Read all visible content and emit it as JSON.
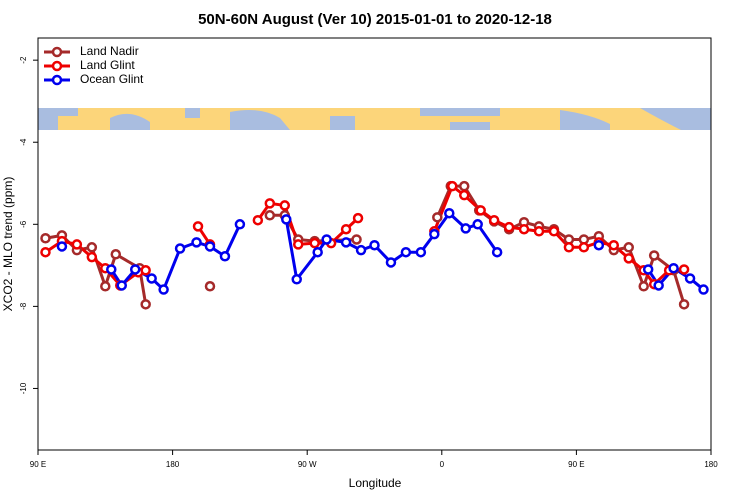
{
  "chart_data": {
    "type": "line",
    "title": "50N-60N August (Ver 10)   2015-01-01 to 2020-12-18",
    "x_label": "Longitude",
    "y_label": "XCO2 - MLO trend (ppm)",
    "xlim": [
      90,
      540
    ],
    "xticks": [
      {
        "value": 90,
        "label": "90 E"
      },
      180,
      {
        "value": 270,
        "label": "90 W"
      },
      {
        "value": 360,
        "label": "0"
      },
      {
        "value": 450,
        "label": "90 E"
      },
      {
        "value": 540,
        "label": "180"
      }
    ],
    "ylim": [
      -11.5,
      -1.46
    ],
    "yticks": [
      -2,
      -4,
      -6,
      -8,
      -10
    ],
    "legend": "top-left",
    "series": [
      {
        "name": "Land Nadir",
        "color": "#a52a2a",
        "x": [
          95,
          106,
          116,
          126,
          135,
          142,
          158,
          162,
          null,
          205,
          null,
          245,
          255,
          264,
          275,
          303,
          null,
          357,
          366,
          375,
          385,
          395,
          405,
          415,
          425,
          435,
          445,
          455,
          465,
          475,
          485,
          495,
          502,
          515,
          522
        ],
        "values": [
          -6.34,
          -6.27,
          -6.63,
          -6.56,
          -7.51,
          -6.73,
          -7.07,
          -7.95,
          null,
          -7.51,
          null,
          -5.78,
          -5.78,
          -6.37,
          -6.41,
          -6.37,
          null,
          -5.83,
          -5.07,
          -5.07,
          -5.66,
          -5.93,
          -6.12,
          -5.95,
          -6.05,
          -6.12,
          -6.37,
          -6.37,
          -6.29,
          -6.63,
          -6.56,
          -7.51,
          -6.76,
          -7.12,
          -7.95
        ]
      },
      {
        "name": "Land Glint",
        "color": "#ee0000",
        "x": [
          95,
          106,
          116,
          126,
          135,
          145,
          157,
          162,
          null,
          197,
          205,
          null,
          237,
          245,
          255,
          264,
          275,
          286,
          296,
          304,
          null,
          355,
          367,
          375,
          386,
          395,
          405,
          415,
          425,
          435,
          445,
          455,
          465,
          475,
          485,
          495,
          502,
          512,
          522
        ],
        "values": [
          -6.68,
          -6.41,
          -6.49,
          -6.8,
          -7.07,
          -7.49,
          -7.17,
          -7.12,
          null,
          -6.05,
          -6.49,
          null,
          -5.9,
          -5.49,
          -5.54,
          -6.49,
          -6.46,
          -6.46,
          -6.12,
          -5.85,
          null,
          -6.17,
          -5.07,
          -5.29,
          -5.66,
          -5.9,
          -6.07,
          -6.12,
          -6.17,
          -6.17,
          -6.56,
          -6.56,
          -6.44,
          -6.51,
          -6.83,
          -7.12,
          -7.46,
          -7.12,
          -7.1
        ]
      },
      {
        "name": "Ocean Glint",
        "color": "#0000ee",
        "x": [
          106,
          null,
          139,
          146,
          155,
          166,
          174,
          185,
          196,
          205,
          215,
          225,
          null,
          256,
          263,
          277,
          283,
          296,
          306,
          315,
          326,
          336,
          346,
          355,
          365,
          376,
          384,
          397,
          null,
          465,
          null,
          498,
          505,
          515,
          526,
          535
        ],
        "values": [
          -6.54,
          null,
          -7.1,
          -7.49,
          -7.1,
          -7.32,
          -7.59,
          -6.59,
          -6.44,
          -6.54,
          -6.78,
          -6.0,
          null,
          -5.88,
          -7.34,
          -6.68,
          -6.37,
          -6.44,
          -6.63,
          -6.51,
          -6.93,
          -6.68,
          -6.68,
          -6.24,
          -5.73,
          -6.1,
          -6.0,
          -6.68,
          null,
          -6.51,
          null,
          -7.1,
          -7.49,
          -7.07,
          -7.32,
          -7.59
        ]
      }
    ]
  }
}
